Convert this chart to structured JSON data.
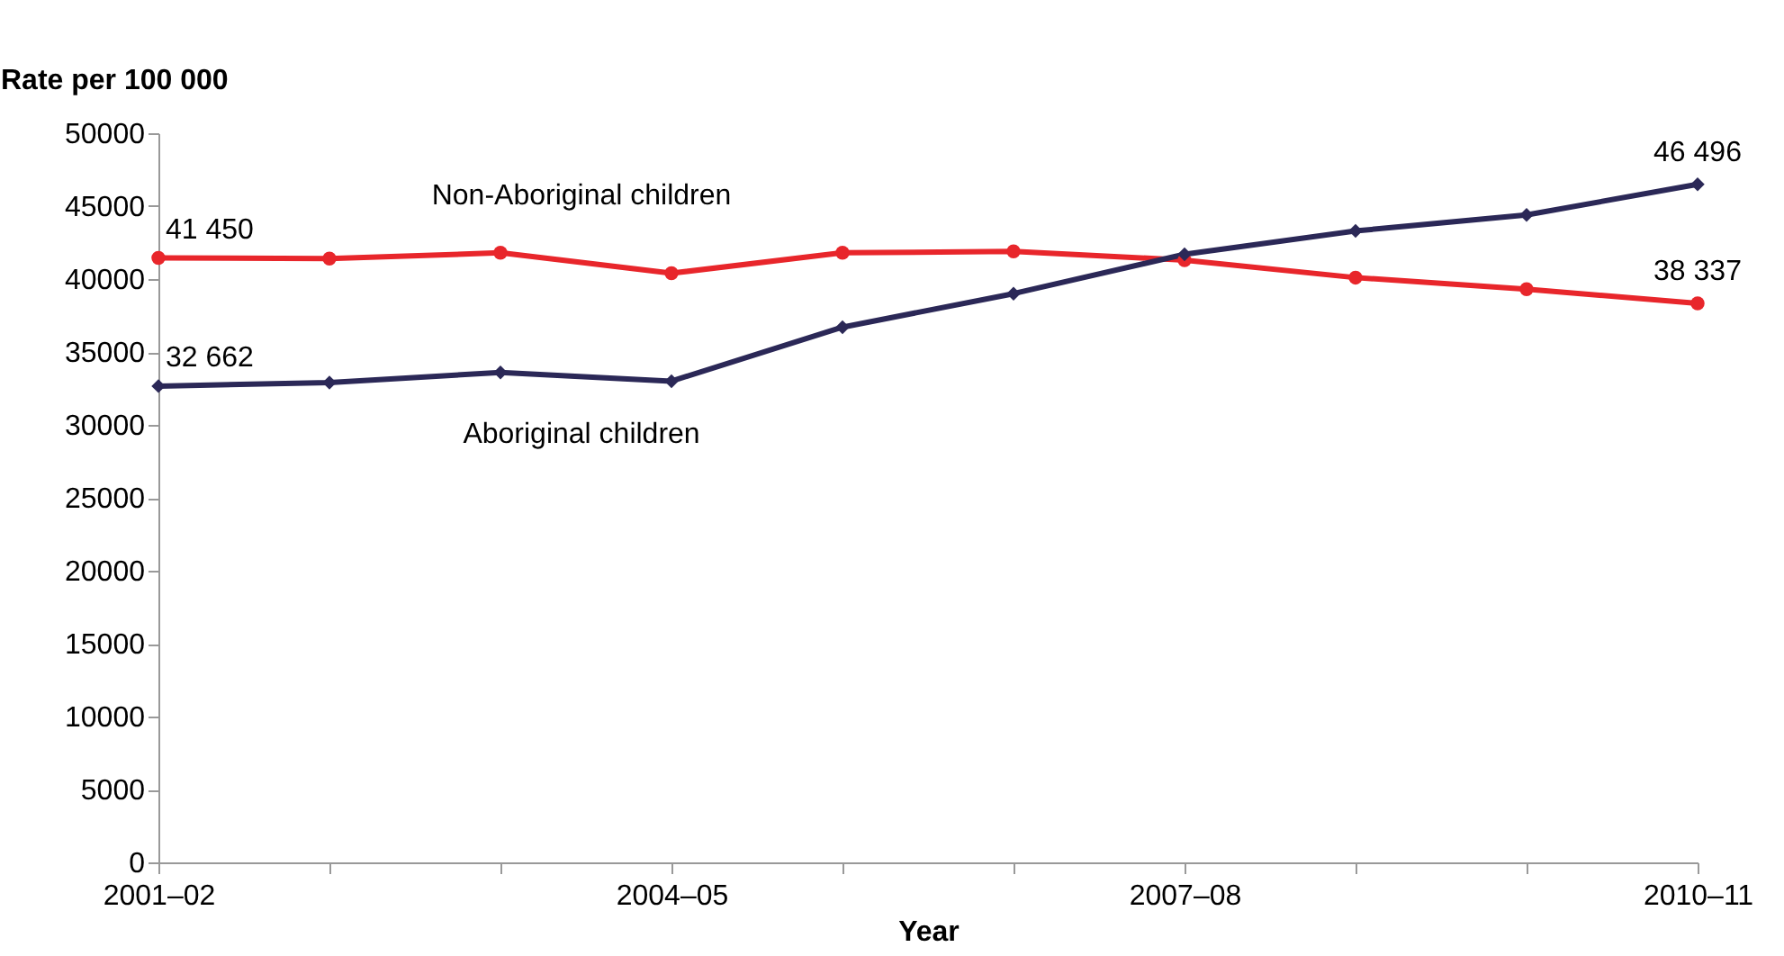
{
  "chart_data": {
    "type": "line",
    "xlabel": "Year",
    "ylabel": "Rate per 100 000",
    "categories": [
      "2001–02",
      null,
      null,
      "2004–05",
      null,
      null,
      "2007–08",
      null,
      null,
      "2010–11"
    ],
    "series": [
      {
        "name": "Non-Aboriginal children",
        "color": "#e8262b",
        "marker": "circle",
        "values": [
          41450,
          41400,
          41800,
          40400,
          41800,
          41900,
          41300,
          40100,
          39300,
          38337
        ],
        "value_labels": [
          "41 450",
          null,
          null,
          null,
          null,
          null,
          null,
          null,
          null,
          "38 337"
        ]
      },
      {
        "name": "Aboriginal children",
        "color": "#2b2857",
        "marker": "diamond",
        "values": [
          32662,
          32900,
          33600,
          33000,
          36700,
          39000,
          41700,
          43300,
          44400,
          46496
        ],
        "value_labels": [
          "32 662",
          null,
          null,
          null,
          null,
          null,
          null,
          null,
          null,
          "46 496"
        ]
      }
    ],
    "ylim": [
      0,
      50000
    ],
    "yticks": [
      0,
      5000,
      10000,
      15000,
      20000,
      25000,
      30000,
      35000,
      40000,
      45000,
      50000
    ],
    "grid": false,
    "legend": false
  }
}
